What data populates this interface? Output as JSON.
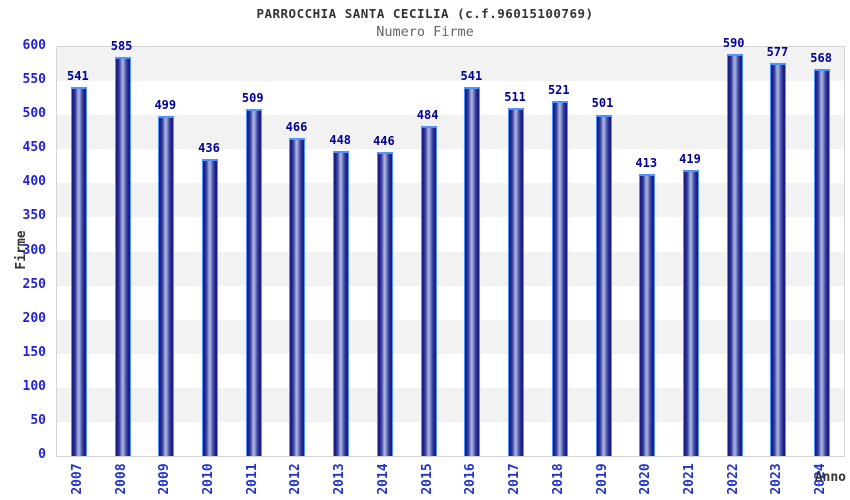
{
  "chart_data": {
    "type": "bar",
    "title": "PARROCCHIA SANTA CECILIA (c.f.96015100769)",
    "subtitle": "Numero Firme",
    "xlabel": "Anno",
    "ylabel": "Firme",
    "categories": [
      "2007",
      "2008",
      "2009",
      "2010",
      "2011",
      "2012",
      "2013",
      "2014",
      "2015",
      "2016",
      "2017",
      "2018",
      "2019",
      "2020",
      "2021",
      "2022",
      "2023",
      "2024"
    ],
    "values": [
      541,
      585,
      499,
      436,
      509,
      466,
      448,
      446,
      484,
      541,
      511,
      521,
      501,
      413,
      419,
      590,
      577,
      568
    ],
    "ylim": [
      0,
      600
    ],
    "ytick_step": 50,
    "yticks": [
      0,
      50,
      100,
      150,
      200,
      250,
      300,
      350,
      400,
      450,
      500,
      550,
      600
    ],
    "legend": null,
    "grid": "alternating-horizontal-bands",
    "x_tick_rotation_deg": -90,
    "value_labels_shown": true,
    "colors": {
      "bar_dark": "#191980",
      "bar_highlight": "#aab4dc",
      "bar_border": "#4d94ff",
      "band_gray": "#f2f2f2",
      "band_white": "#ffffff",
      "axis_tick_label": "#2222dd",
      "x_tick_label": "#2233cc",
      "value_label": "#000099",
      "title": "#333333",
      "subtitle": "#666666",
      "axis_title": "#333333",
      "plot_border": "#d4d4d4"
    }
  }
}
